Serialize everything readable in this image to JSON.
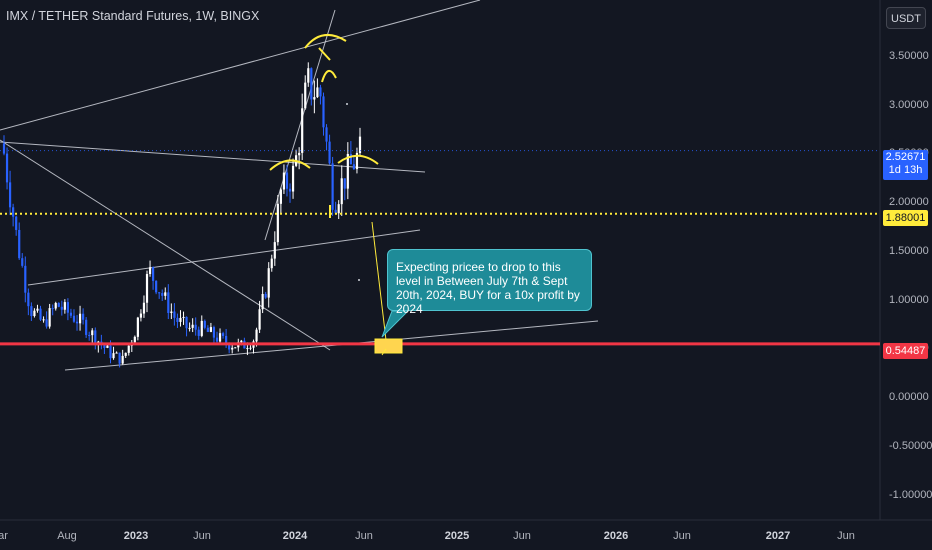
{
  "header": {
    "title": "IMX / TETHER Standard Futures, 1W, BINGX",
    "currency": "USDT"
  },
  "price_tags": {
    "current_price": "2.52671",
    "countdown": "1d 13h",
    "yellow_level": "1.88001",
    "red_level": "0.54487"
  },
  "annotation": {
    "text": "Expecting pricee to drop to this level in Between July 7th & Sept 20th, 2024, BUY for a 10x profit by 2024"
  },
  "colors": {
    "background": "#131722",
    "candle_up": "#ffffff",
    "candle_down": "#2962ff",
    "yellow_line": "#ffeb3b",
    "red_line": "#f23645",
    "callout": "#1e8b98",
    "trendline": "#d1d4dc"
  },
  "chart_data": {
    "type": "candlestick",
    "timeframe": "1W",
    "y_axis": {
      "ticks": [
        "3.50000",
        "3.00000",
        "2.50000",
        "2.00000",
        "1.50000",
        "1.00000",
        "0.50000",
        "0.00000",
        "-0.50000",
        "-1.00000"
      ],
      "range": [
        -1.15,
        3.95
      ]
    },
    "x_axis": {
      "ticks": [
        "ar",
        "Aug",
        "2023",
        "Jun",
        "2024",
        "Jun",
        "2025",
        "Jun",
        "2026",
        "Jun",
        "2027",
        "Jun"
      ]
    },
    "horizontal_levels": [
      {
        "value": 1.88001,
        "color": "#ffeb3b",
        "style": "dotted"
      },
      {
        "value": 0.54487,
        "color": "#f23645",
        "style": "solid"
      }
    ],
    "approx_series": {
      "x": [
        "2022-03",
        "2022-04",
        "2022-05",
        "2022-06",
        "2022-07",
        "2022-08",
        "2022-09",
        "2022-10",
        "2022-11",
        "2022-12",
        "2023-01",
        "2023-02",
        "2023-03",
        "2023-04",
        "2023-05",
        "2023-06",
        "2023-07",
        "2023-08",
        "2023-09",
        "2023-10",
        "2023-11",
        "2023-12",
        "2024-01",
        "2024-02",
        "2024-03",
        "2024-04",
        "2024-05",
        "2024-06"
      ],
      "close": [
        2.5,
        1.6,
        0.9,
        0.75,
        0.95,
        0.85,
        0.75,
        0.6,
        0.45,
        0.38,
        0.7,
        1.3,
        1.05,
        0.8,
        0.7,
        0.7,
        0.62,
        0.55,
        0.52,
        0.6,
        1.2,
        2.1,
        2.3,
        3.2,
        3.1,
        2.0,
        2.3,
        2.5
      ]
    }
  }
}
